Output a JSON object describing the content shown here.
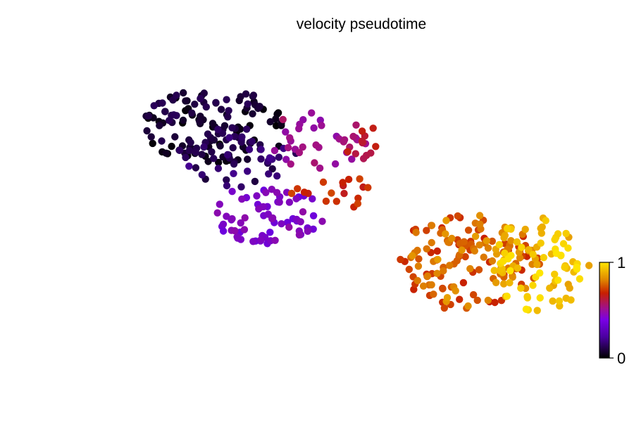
{
  "chart_data": {
    "type": "scatter",
    "title": "velocity pseudotime",
    "xlabel": "",
    "ylabel": "",
    "xlim": [
      0,
      1
    ],
    "ylim": [
      0,
      1
    ],
    "grid": false,
    "axes_visible": false,
    "colormap": "gnuplot",
    "colorbar": {
      "range": [
        0,
        1
      ],
      "ticks": [
        0,
        1
      ],
      "tick_labels": [
        "0",
        "1"
      ],
      "placement": "right",
      "colors": [
        "#000000",
        "#6a00e0",
        "#a0108c",
        "#c82000",
        "#e08800",
        "#ffe600"
      ]
    },
    "clusters": [
      {
        "cx": 0.19,
        "cy": 0.728,
        "rx": 0.162,
        "ry": 0.123,
        "t_min": 0.0,
        "t_max": 0.08,
        "n": 135
      },
      {
        "cx": 0.24,
        "cy": 0.63,
        "rx": 0.13,
        "ry": 0.098,
        "t_min": 0.05,
        "t_max": 0.13,
        "n": 40
      },
      {
        "cx": 0.305,
        "cy": 0.445,
        "rx": 0.12,
        "ry": 0.098,
        "t_min": 0.2,
        "t_max": 0.34,
        "n": 70
      },
      {
        "cx": 0.408,
        "cy": 0.682,
        "rx": 0.112,
        "ry": 0.09,
        "t_min": 0.3,
        "t_max": 0.46,
        "n": 35
      },
      {
        "cx": 0.515,
        "cy": 0.675,
        "rx": 0.05,
        "ry": 0.052,
        "t_min": 0.48,
        "t_max": 0.58,
        "n": 12
      },
      {
        "cx": 0.45,
        "cy": 0.515,
        "rx": 0.1,
        "ry": 0.052,
        "t_min": 0.55,
        "t_max": 0.68,
        "n": 18
      },
      {
        "cx": 0.735,
        "cy": 0.29,
        "rx": 0.155,
        "ry": 0.16,
        "t_min": 0.6,
        "t_max": 0.85,
        "n": 150
      },
      {
        "cx": 0.89,
        "cy": 0.285,
        "rx": 0.105,
        "ry": 0.155,
        "t_min": 0.85,
        "t_max": 1.0,
        "n": 85
      }
    ]
  }
}
